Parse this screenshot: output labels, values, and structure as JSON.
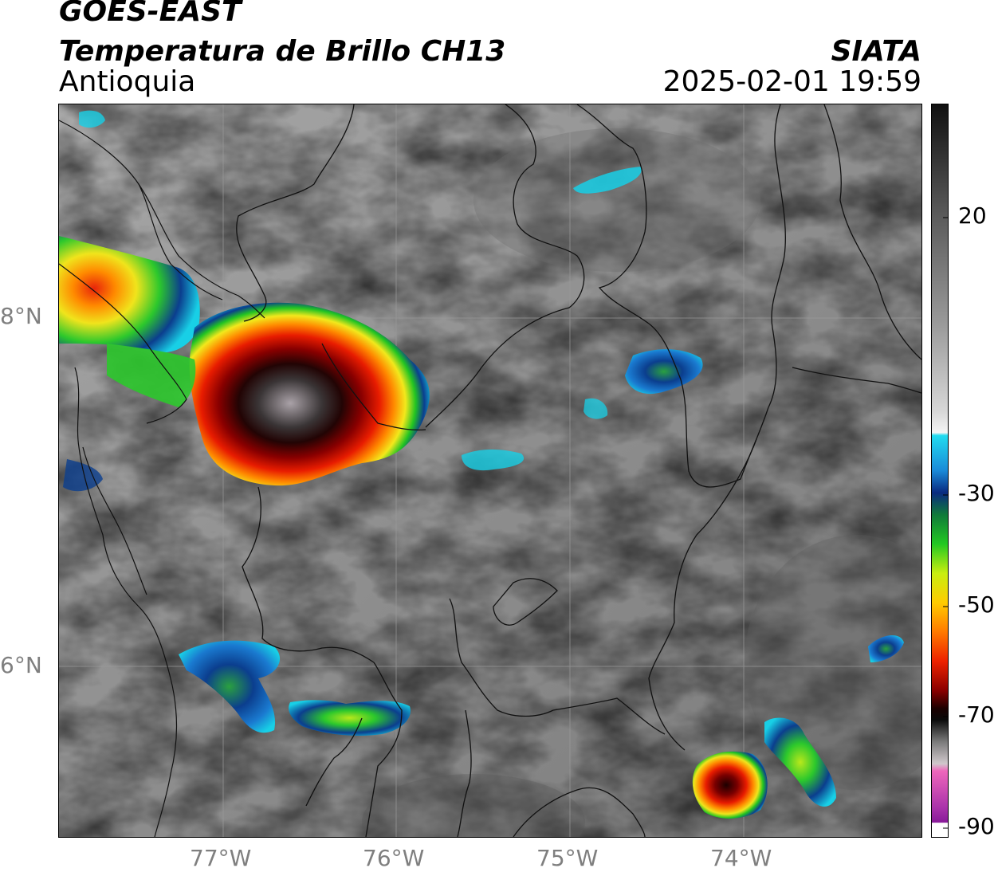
{
  "header": {
    "satellite": "GOES-EAST",
    "product": "Temperatura de Brillo CH13",
    "region": "Antioquia",
    "organization": "SIATA",
    "datetime": "2025-02-01 19:59"
  },
  "map": {
    "lat_ticks": [
      "8°N",
      "6°N"
    ],
    "lon_ticks": [
      "77°W",
      "76°W",
      "75°W",
      "74°W"
    ]
  },
  "colorbar": {
    "tick_labels": [
      "20",
      "-30",
      "-50",
      "-70",
      "-90"
    ],
    "colors": {
      "warm_top": "#101010",
      "cloud_white": "#f2f2f2",
      "cyan": "#18d4ee",
      "blue": "#0a3a8c",
      "green": "#22c822",
      "yellow": "#eeee22",
      "orange": "#ff8800",
      "red": "#dd1100",
      "dark_red": "#440000",
      "black": "#0a0a0a",
      "grey_cold": "#bbb0b8",
      "magenta": "#aa22aa"
    }
  },
  "features": {
    "storm_cells": [
      "main-cell-northwest",
      "cell-west-edge",
      "cell-southwest",
      "cell-south-central",
      "cell-southeast",
      "cell-east-small",
      "cell-northeast"
    ],
    "boundaries": [
      "department-boundaries",
      "coastline"
    ]
  }
}
